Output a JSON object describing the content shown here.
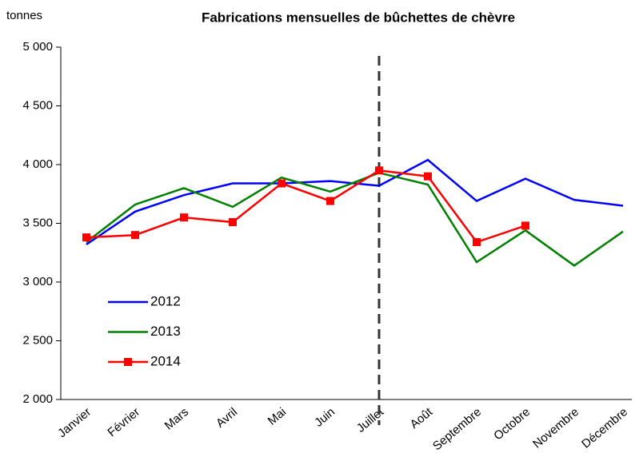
{
  "chart_data": {
    "type": "line",
    "title": "Fabrications mensuelles de bûchettes de chèvre",
    "y_label": "tonnes",
    "categories": [
      "Janvier",
      "Février",
      "Mars",
      "Avril",
      "Mai",
      "Juin",
      "Juillet",
      "Août",
      "Septembre",
      "Octobre",
      "Novembre",
      "Décembre"
    ],
    "series": [
      {
        "name": "2012",
        "color": "#0000ff",
        "marker": false,
        "values": [
          3320,
          3600,
          3740,
          3840,
          3840,
          3860,
          3820,
          4040,
          3690,
          3880,
          3700,
          3650
        ]
      },
      {
        "name": "2013",
        "color": "#008000",
        "marker": false,
        "values": [
          3340,
          3660,
          3800,
          3640,
          3890,
          3770,
          3930,
          3830,
          3170,
          3440,
          3140,
          3430
        ]
      },
      {
        "name": "2014",
        "color": "#ff0000",
        "marker": true,
        "values": [
          3380,
          3400,
          3550,
          3510,
          3840,
          3690,
          3950,
          3900,
          3340,
          3480,
          null,
          null
        ]
      }
    ],
    "reference_line": {
      "x": "Juillet",
      "color": "#333333"
    },
    "ylim": [
      2000,
      5000
    ],
    "yticks": [
      {
        "value": 2000,
        "label": "2 000"
      },
      {
        "value": 2500,
        "label": "2 500"
      },
      {
        "value": 3000,
        "label": "3 000"
      },
      {
        "value": 3500,
        "label": "3 500"
      },
      {
        "value": 4000,
        "label": "4 000"
      },
      {
        "value": 4500,
        "label": "4 500"
      },
      {
        "value": 5000,
        "label": "5 000"
      }
    ],
    "grid": false,
    "legend": "lower left"
  }
}
